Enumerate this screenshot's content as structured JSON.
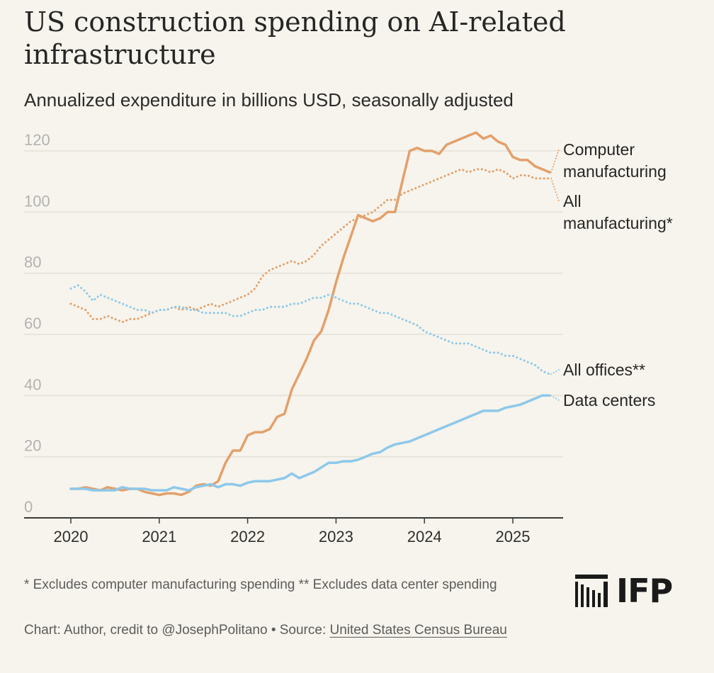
{
  "header": {
    "title": "US construction spending on AI-related infrastructure",
    "subtitle": "Annualized expenditure in billions USD, seasonally adjusted"
  },
  "footer": {
    "footnote": "* Excludes computer manufacturing spending ** Excludes data center spending",
    "credit_prefix": "Chart: Author, credit to @JosephPolitano • Source: ",
    "source_link": "United States Census Bureau",
    "logo_text": "IFP"
  },
  "colors": {
    "orange": "#e3a06c",
    "blue": "#8dc8ea",
    "grid": "#e3e1d8",
    "axis": "#3a3a3a"
  },
  "chart_data": {
    "type": "line",
    "title": "US construction spending on AI-related infrastructure",
    "subtitle": "Annualized expenditure in billions USD, seasonally adjusted",
    "xlabel": "",
    "ylabel": "",
    "xlim": [
      2020.0,
      2025.55
    ],
    "ylim": [
      0,
      120
    ],
    "yticks": [
      0,
      20,
      40,
      60,
      80,
      100,
      120
    ],
    "xticks": [
      2020,
      2021,
      2022,
      2023,
      2024,
      2025
    ],
    "grid": true,
    "legend": "direct labels at line ends (right)",
    "series": [
      {
        "name": "Computer manufacturing",
        "style": "solid",
        "color": "#e3a06c",
        "x": [
          2020.0,
          2020.083,
          2020.167,
          2020.25,
          2020.333,
          2020.417,
          2020.5,
          2020.583,
          2020.667,
          2020.75,
          2020.833,
          2020.917,
          2021.0,
          2021.083,
          2021.167,
          2021.25,
          2021.333,
          2021.417,
          2021.5,
          2021.583,
          2021.667,
          2021.75,
          2021.833,
          2021.917,
          2022.0,
          2022.083,
          2022.167,
          2022.25,
          2022.333,
          2022.417,
          2022.5,
          2022.583,
          2022.667,
          2022.75,
          2022.833,
          2022.917,
          2023.0,
          2023.083,
          2023.167,
          2023.25,
          2023.333,
          2023.417,
          2023.5,
          2023.583,
          2023.667,
          2023.75,
          2023.833,
          2023.917,
          2024.0,
          2024.083,
          2024.167,
          2024.25,
          2024.333,
          2024.417,
          2024.5,
          2024.583,
          2024.667,
          2024.75,
          2024.833,
          2024.917,
          2025.0,
          2025.083,
          2025.167,
          2025.25,
          2025.333,
          2025.417
        ],
        "values": [
          9.5,
          9.5,
          10,
          9.5,
          9,
          10,
          9.5,
          9,
          9.5,
          9.5,
          8.5,
          8,
          7.5,
          8,
          8,
          7.5,
          8.5,
          10.5,
          11,
          10.5,
          12,
          18,
          22,
          22,
          27,
          28,
          28,
          29,
          33,
          34,
          42,
          47,
          52,
          58,
          61,
          68,
          77,
          85,
          92,
          99,
          98,
          97,
          98,
          100,
          100,
          110,
          120,
          121,
          120,
          120,
          119,
          122,
          123,
          124,
          125,
          126,
          124,
          125,
          123,
          122,
          118,
          117,
          117,
          115,
          114,
          113
        ]
      },
      {
        "name": "All manufacturing*",
        "style": "dotted",
        "color": "#e3a06c",
        "x": [
          2020.0,
          2020.083,
          2020.167,
          2020.25,
          2020.333,
          2020.417,
          2020.5,
          2020.583,
          2020.667,
          2020.75,
          2020.833,
          2020.917,
          2021.0,
          2021.083,
          2021.167,
          2021.25,
          2021.333,
          2021.417,
          2021.5,
          2021.583,
          2021.667,
          2021.75,
          2021.833,
          2021.917,
          2022.0,
          2022.083,
          2022.167,
          2022.25,
          2022.333,
          2022.417,
          2022.5,
          2022.583,
          2022.667,
          2022.75,
          2022.833,
          2022.917,
          2023.0,
          2023.083,
          2023.167,
          2023.25,
          2023.333,
          2023.417,
          2023.5,
          2023.583,
          2023.667,
          2023.75,
          2023.833,
          2023.917,
          2024.0,
          2024.083,
          2024.167,
          2024.25,
          2024.333,
          2024.417,
          2024.5,
          2024.583,
          2024.667,
          2024.75,
          2024.833,
          2024.917,
          2025.0,
          2025.083,
          2025.167,
          2025.25,
          2025.333,
          2025.417
        ],
        "values": [
          70,
          69,
          68,
          65,
          65,
          66,
          65,
          64,
          65,
          65,
          66,
          67,
          68,
          68,
          69,
          68,
          69,
          68,
          69,
          70,
          69,
          70,
          71,
          72,
          73,
          75,
          79,
          81,
          82,
          83,
          84,
          83,
          84,
          86,
          89,
          91,
          93,
          95,
          97,
          98,
          99,
          100,
          102,
          104,
          104,
          106,
          107,
          108,
          109,
          110,
          111,
          112,
          113,
          114,
          113,
          114,
          114,
          113,
          114,
          113,
          111,
          112,
          112,
          111,
          111,
          111
        ]
      },
      {
        "name": "All offices**",
        "style": "dotted",
        "color": "#8dc8ea",
        "x": [
          2020.0,
          2020.083,
          2020.167,
          2020.25,
          2020.333,
          2020.417,
          2020.5,
          2020.583,
          2020.667,
          2020.75,
          2020.833,
          2020.917,
          2021.0,
          2021.083,
          2021.167,
          2021.25,
          2021.333,
          2021.417,
          2021.5,
          2021.583,
          2021.667,
          2021.75,
          2021.833,
          2021.917,
          2022.0,
          2022.083,
          2022.167,
          2022.25,
          2022.333,
          2022.417,
          2022.5,
          2022.583,
          2022.667,
          2022.75,
          2022.833,
          2022.917,
          2023.0,
          2023.083,
          2023.167,
          2023.25,
          2023.333,
          2023.417,
          2023.5,
          2023.583,
          2023.667,
          2023.75,
          2023.833,
          2023.917,
          2024.0,
          2024.083,
          2024.167,
          2024.25,
          2024.333,
          2024.417,
          2024.5,
          2024.583,
          2024.667,
          2024.75,
          2024.833,
          2024.917,
          2025.0,
          2025.083,
          2025.167,
          2025.25,
          2025.333,
          2025.417
        ],
        "values": [
          75,
          76,
          74,
          71,
          73,
          72,
          71,
          70,
          69,
          68,
          68,
          67,
          68,
          68,
          69,
          69,
          68,
          68,
          67,
          67,
          67,
          67,
          66,
          66,
          67,
          68,
          68,
          69,
          69,
          69,
          70,
          70,
          71,
          72,
          72,
          73,
          72,
          71,
          70,
          70,
          69,
          68,
          67,
          67,
          66,
          65,
          64,
          63,
          61,
          60,
          59,
          58,
          57,
          57,
          57,
          56,
          55,
          54,
          54,
          53,
          53,
          52,
          51,
          50,
          48,
          47
        ]
      },
      {
        "name": "Data centers",
        "style": "solid",
        "color": "#8dc8ea",
        "x": [
          2020.0,
          2020.083,
          2020.167,
          2020.25,
          2020.333,
          2020.417,
          2020.5,
          2020.583,
          2020.667,
          2020.75,
          2020.833,
          2020.917,
          2021.0,
          2021.083,
          2021.167,
          2021.25,
          2021.333,
          2021.417,
          2021.5,
          2021.583,
          2021.667,
          2021.75,
          2021.833,
          2021.917,
          2022.0,
          2022.083,
          2022.167,
          2022.25,
          2022.333,
          2022.417,
          2022.5,
          2022.583,
          2022.667,
          2022.75,
          2022.833,
          2022.917,
          2023.0,
          2023.083,
          2023.167,
          2023.25,
          2023.333,
          2023.417,
          2023.5,
          2023.583,
          2023.667,
          2023.75,
          2023.833,
          2023.917,
          2024.0,
          2024.083,
          2024.167,
          2024.25,
          2024.333,
          2024.417,
          2024.5,
          2024.583,
          2024.667,
          2024.75,
          2024.833,
          2024.917,
          2025.0,
          2025.083,
          2025.167,
          2025.25,
          2025.333,
          2025.417
        ],
        "values": [
          9.5,
          9.5,
          9.5,
          9,
          9,
          9,
          9,
          10,
          9.5,
          9.5,
          9.5,
          9,
          9,
          9,
          10,
          9.5,
          9,
          10,
          10.5,
          11,
          10,
          11,
          11,
          10.5,
          11.5,
          12,
          12,
          12,
          12.5,
          13,
          14.5,
          13,
          14,
          15,
          16.5,
          18,
          18,
          18.5,
          18.5,
          19,
          20,
          21,
          21.5,
          23,
          24,
          24.5,
          25,
          26,
          27,
          28,
          29,
          30,
          31,
          32,
          33,
          34,
          35,
          35,
          35,
          36,
          36.5,
          37,
          38,
          39,
          40,
          40
        ]
      }
    ]
  }
}
